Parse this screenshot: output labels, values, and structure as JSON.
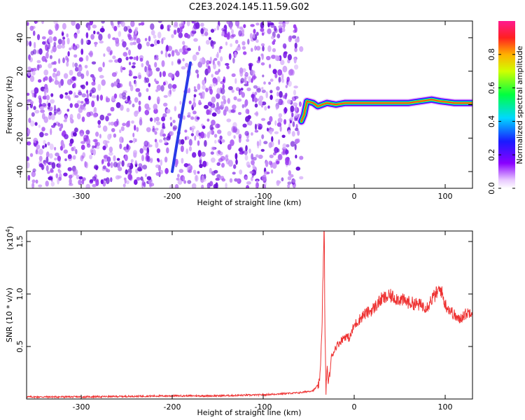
{
  "title": "C2E3.2024.145.11.59.G02",
  "colors": {
    "snr_line": "#ee3333",
    "background_dots": "#7a1ae6",
    "streak": "#2a3ae8"
  },
  "chart_data": [
    {
      "type": "heatmap",
      "title": "C2E3.2024.145.11.59.G02",
      "xlabel": "Height of straight line (km)",
      "ylabel": "Frequency (Hz)",
      "xlim": [
        -360,
        130
      ],
      "ylim": [
        -50,
        50
      ],
      "x_ticks": [
        -300,
        -200,
        -100,
        0,
        100
      ],
      "x_tick_labels": [
        "-300",
        "-200",
        "-100",
        "0",
        "100"
      ],
      "y_ticks": [
        -40,
        -20,
        0,
        20,
        40
      ],
      "y_tick_labels": [
        "-40",
        "-20",
        "0",
        "20",
        "40"
      ],
      "noise_region_x": [
        -360,
        -58
      ],
      "streak": [
        [
          -200,
          -40
        ],
        [
          -180,
          25
        ]
      ],
      "signal_trace": [
        {
          "x": -58,
          "y": -10
        },
        {
          "x": -55,
          "y": -6
        },
        {
          "x": -52,
          "y": 2
        },
        {
          "x": -45,
          "y": 1
        },
        {
          "x": -40,
          "y": -1
        },
        {
          "x": -30,
          "y": 1
        },
        {
          "x": -20,
          "y": 0
        },
        {
          "x": -10,
          "y": 1
        },
        {
          "x": 0,
          "y": 1
        },
        {
          "x": 30,
          "y": 1
        },
        {
          "x": 60,
          "y": 1
        },
        {
          "x": 85,
          "y": 3
        },
        {
          "x": 95,
          "y": 2
        },
        {
          "x": 110,
          "y": 1
        },
        {
          "x": 130,
          "y": 1
        }
      ],
      "colorbar": {
        "label": "Normalized spectral amplitude",
        "range": [
          0,
          1
        ],
        "ticks": [
          0.0,
          0.2,
          0.4,
          0.6,
          0.8
        ],
        "tick_labels": [
          "0.0",
          "0.2",
          "0.4",
          "0.6",
          "0.8"
        ]
      },
      "grid": false
    },
    {
      "type": "line",
      "xlabel": "Height of straight line (km)",
      "ylabel": "SNR (10 * v/v)",
      "y_multiplier_label": "(x10",
      "y_multiplier_exp": "4",
      "y_multiplier_close": ")",
      "xlim": [
        -360,
        130
      ],
      "ylim": [
        0,
        1.6
      ],
      "x_ticks": [
        -300,
        -200,
        -100,
        0,
        100
      ],
      "x_tick_labels": [
        "-300",
        "-200",
        "-100",
        "0",
        "100"
      ],
      "y_ticks": [
        0.5,
        1.0,
        1.5
      ],
      "y_tick_labels": [
        "0.5",
        "1.0",
        "1.5"
      ],
      "series": [
        {
          "x": [
            -360,
            -300,
            -250,
            -200,
            -150,
            -100,
            -80,
            -60,
            -45,
            -38,
            -36,
            -34,
            -33,
            -32,
            -31,
            -30,
            -28,
            -25,
            -20,
            -15,
            -10,
            -5,
            0,
            5,
            10,
            20,
            30,
            40,
            50,
            60,
            70,
            80,
            85,
            90,
            95,
            100,
            105,
            110,
            115,
            120,
            125,
            130
          ],
          "values": [
            0.02,
            0.02,
            0.025,
            0.03,
            0.03,
            0.04,
            0.05,
            0.06,
            0.08,
            0.15,
            0.55,
            1.2,
            1.6,
            0.6,
            0.05,
            0.3,
            0.15,
            0.4,
            0.5,
            0.55,
            0.6,
            0.58,
            0.7,
            0.75,
            0.8,
            0.85,
            0.95,
            0.98,
            0.95,
            0.92,
            0.9,
            0.88,
            0.95,
            1.0,
            1.05,
            0.9,
            0.85,
            0.8,
            0.75,
            0.8,
            0.82,
            0.85
          ]
        }
      ],
      "grid": false
    }
  ]
}
